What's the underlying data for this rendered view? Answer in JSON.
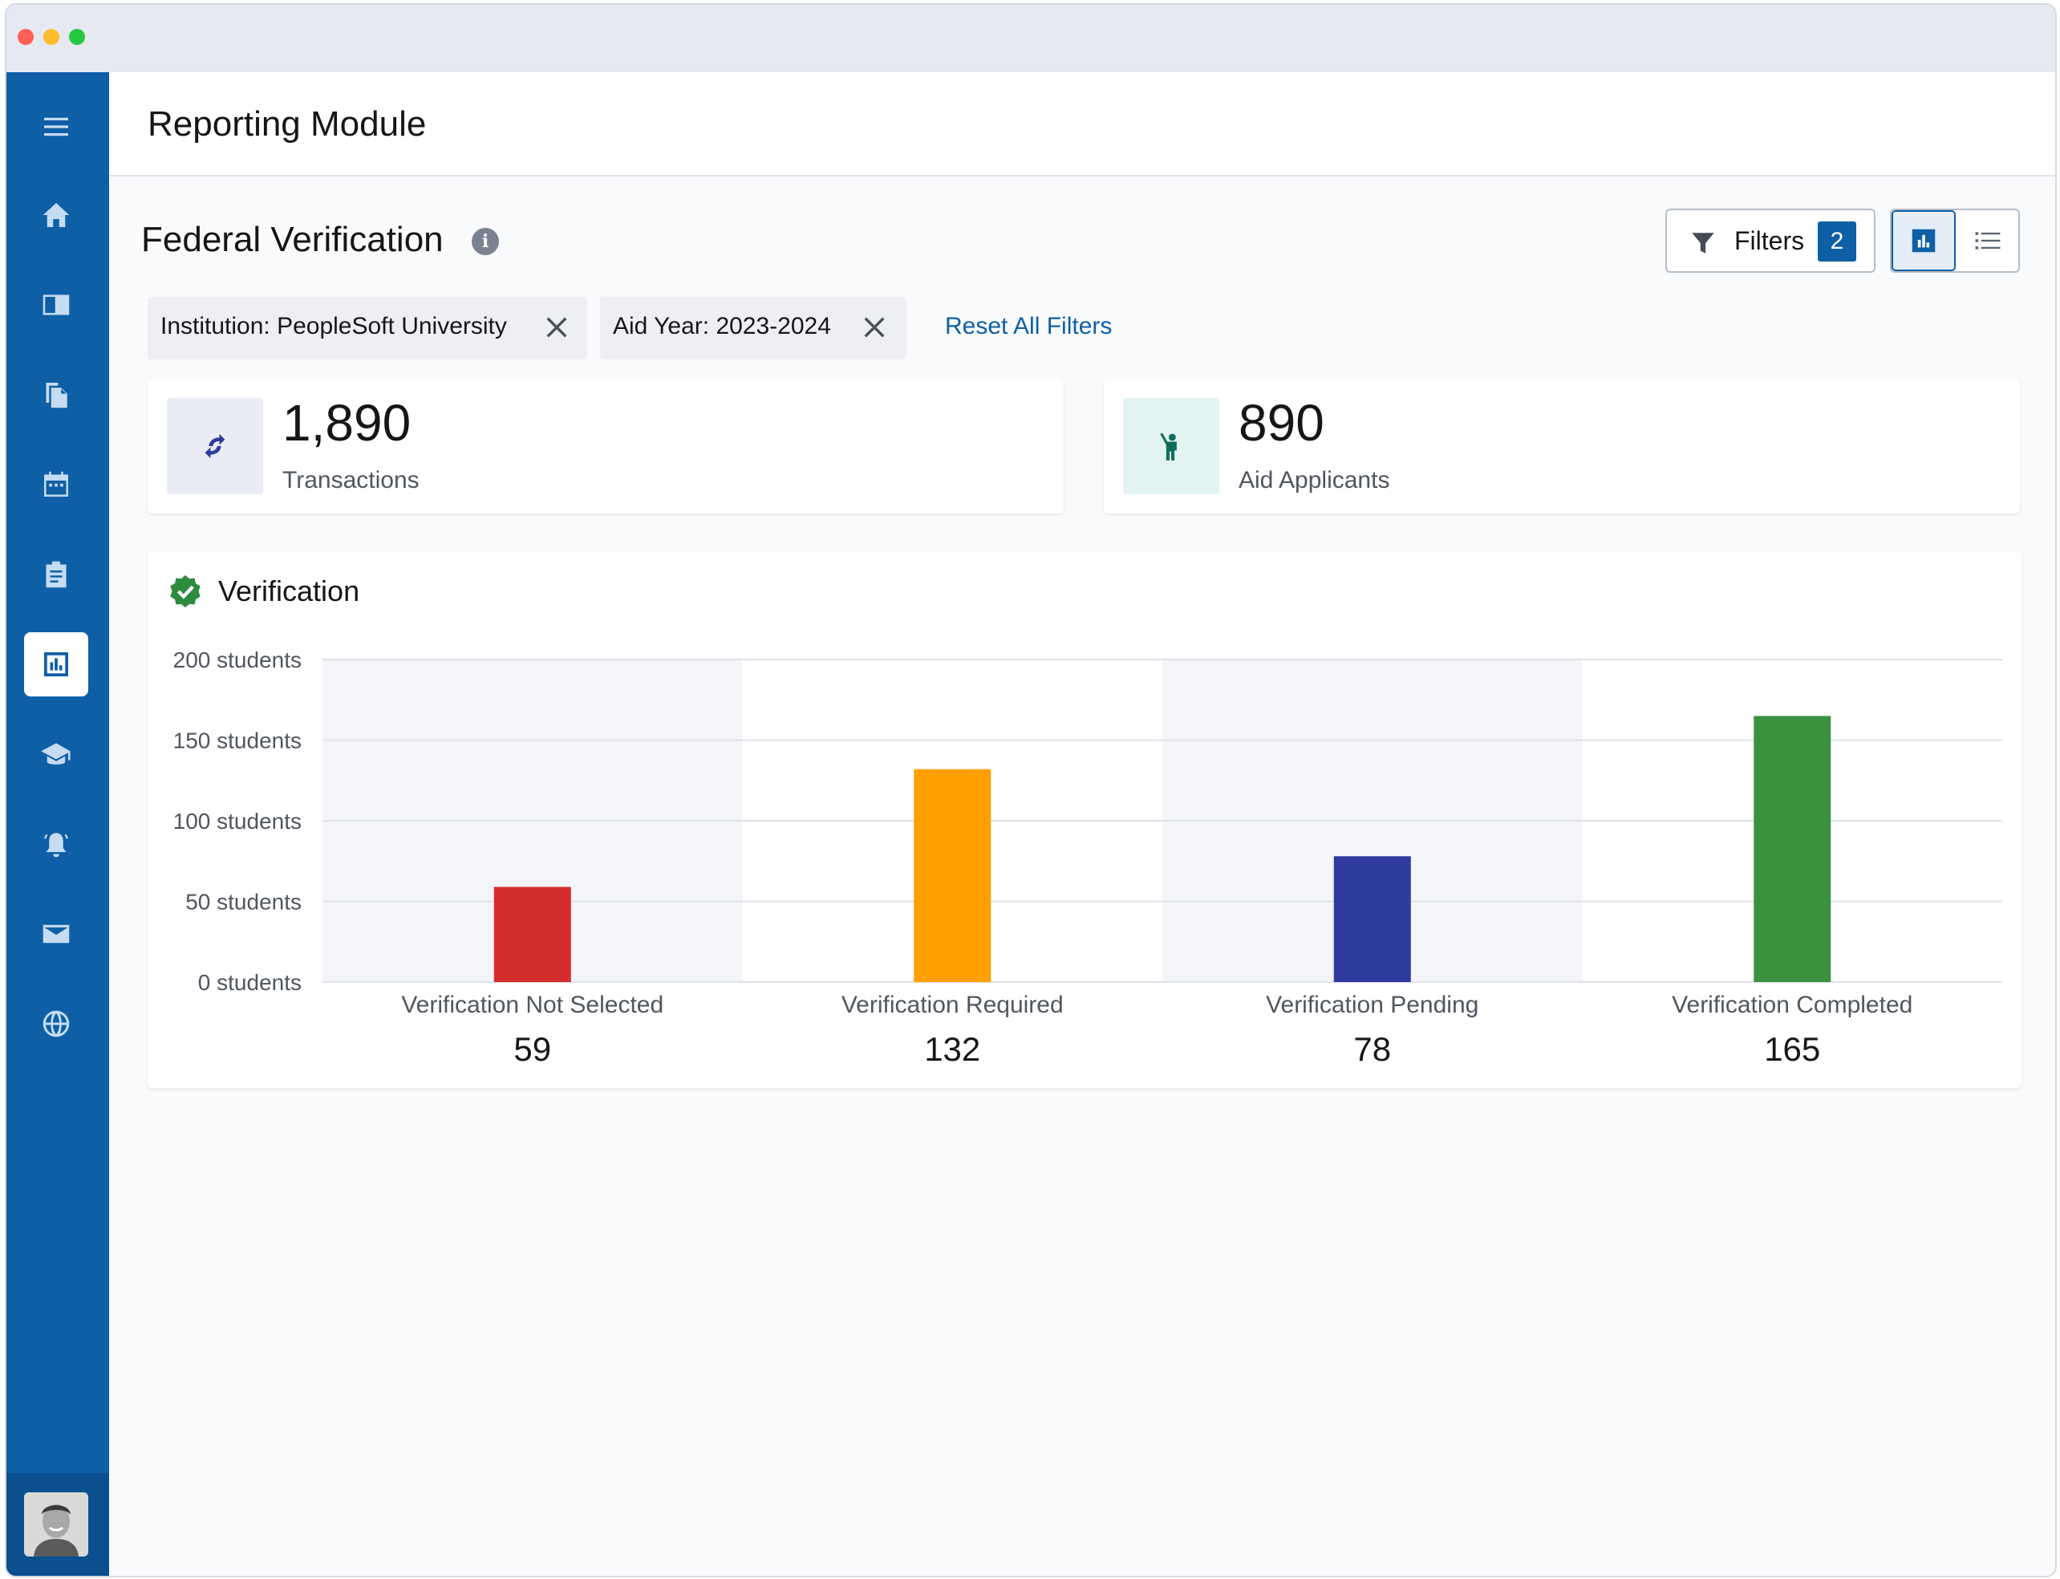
{
  "window": {
    "controls": [
      "close",
      "minimize",
      "maximize"
    ]
  },
  "sidebar": {
    "items": [
      {
        "icon": "menu-icon"
      },
      {
        "icon": "home-icon"
      },
      {
        "icon": "id-card-icon"
      },
      {
        "icon": "documents-icon"
      },
      {
        "icon": "calendar-icon"
      },
      {
        "icon": "clipboard-icon"
      },
      {
        "icon": "reports-icon",
        "active": true
      },
      {
        "icon": "graduation-cap-icon"
      },
      {
        "icon": "alarm-bell-icon"
      },
      {
        "icon": "mail-icon"
      },
      {
        "icon": "globe-icon"
      }
    ],
    "accent": "#0f5fa7"
  },
  "header": {
    "title": "Reporting Module"
  },
  "section": {
    "title": "Federal Verification"
  },
  "filters": {
    "label": "Filters",
    "count": "2"
  },
  "view_toggle": {
    "selected": "chart",
    "options": [
      "chart",
      "list"
    ]
  },
  "chips": [
    {
      "label": "Institution: PeopleSoft University"
    },
    {
      "label": "Aid Year: 2023-2024"
    }
  ],
  "reset_label": "Reset All Filters",
  "kpis": [
    {
      "value": "1,890",
      "label": "Transactions",
      "icon": "sync-icon",
      "icon_bg": "#e9ebf5",
      "icon_color": "#2e3d9b"
    },
    {
      "value": "890",
      "label": "Aid Applicants",
      "icon": "person-raise-hand-icon",
      "icon_bg": "#e2f3f1",
      "icon_color": "#0f6e5b"
    }
  ],
  "chart_card": {
    "title": "Verification"
  },
  "chart_data": {
    "type": "bar",
    "title": "Verification",
    "categories": [
      "Verification Not Selected",
      "Verification Required",
      "Verification Pending",
      "Verification Completed"
    ],
    "values": [
      59,
      132,
      78,
      165
    ],
    "value_labels": [
      "59",
      "132",
      "78",
      "165"
    ],
    "colors": [
      "#d42d2d",
      "#ffa000",
      "#2e3a9e",
      "#3a923f"
    ],
    "ylim": [
      0,
      200
    ],
    "yticks": [
      0,
      50,
      100,
      150,
      200
    ],
    "ytick_labels": [
      "0 students",
      "50 students",
      "100 students",
      "150 students",
      "200 students"
    ],
    "grid": true
  }
}
